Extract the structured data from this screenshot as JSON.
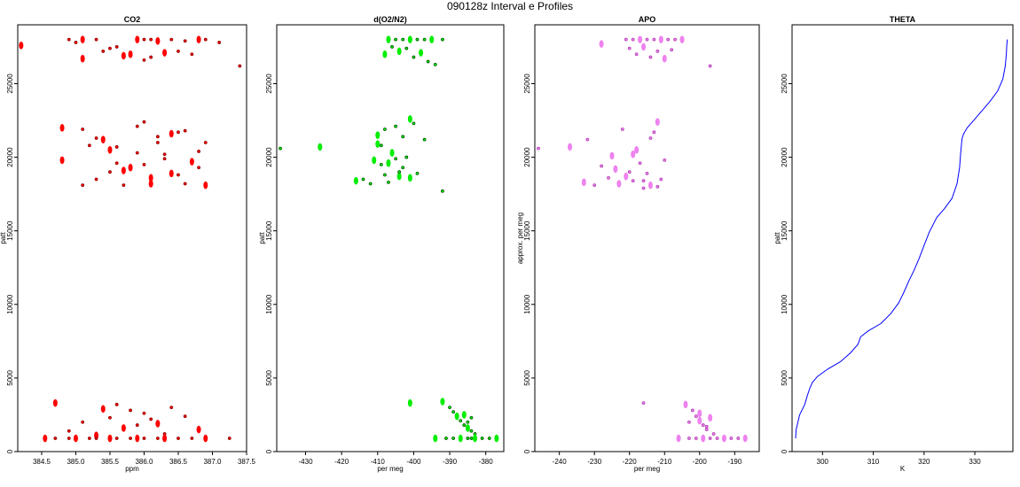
{
  "figure_title": "090128z   Interval e Profiles",
  "chart_data": [
    {
      "type": "scatter",
      "title": "CO2",
      "xlabel": "ppm",
      "ylabel": "patt",
      "xlim": [
        384.15,
        387.5
      ],
      "ylim": [
        0,
        29000
      ],
      "xticks": [
        384.5,
        385.0,
        385.5,
        386.0,
        386.5,
        387.0,
        387.5
      ],
      "xtick_labels": [
        "384.5",
        "385.0",
        "385.5",
        "386.0",
        "386.5",
        "387.0",
        "387.5"
      ],
      "yticks": [
        0,
        5000,
        10000,
        15000,
        20000,
        25000
      ],
      "ytick_labels": [
        "0",
        "5000",
        "10000",
        "15000",
        "20000",
        "25000"
      ],
      "colors": {
        "fill": "#ff0000",
        "edge": "#8b0000"
      },
      "series": [
        {
          "x": [
            384.2,
            384.9,
            385.0,
            385.1,
            385.3,
            385.6,
            385.9,
            386.0,
            386.1,
            386.2,
            386.4,
            386.6,
            386.8,
            386.9,
            387.1
          ],
          "y": [
            27600,
            28000,
            27800,
            28000,
            28000,
            27500,
            28000,
            28000,
            28000,
            27900,
            28000,
            27900,
            28000,
            28000,
            27800
          ]
        },
        {
          "x": [
            385.1,
            385.4,
            385.5,
            385.8,
            386.0,
            386.1,
            386.3,
            386.7,
            387.4,
            385.7,
            386.5
          ],
          "y": [
            26700,
            27200,
            27400,
            27000,
            26600,
            26800,
            27100,
            27000,
            26200,
            26900,
            27200
          ]
        },
        {
          "x": [
            384.8,
            385.1,
            385.3,
            385.5,
            385.6,
            385.7,
            385.8,
            385.9,
            386.0,
            386.1,
            386.2,
            386.3,
            386.4,
            386.5,
            386.6,
            386.7,
            386.8,
            386.9
          ],
          "y": [
            22000,
            21900,
            21300,
            20500,
            19600,
            18100,
            19300,
            20300,
            22400,
            18200,
            21000,
            19900,
            21600,
            18800,
            21800,
            19700,
            20400,
            21000
          ]
        },
        {
          "x": [
            384.8,
            385.1,
            385.3,
            385.4,
            385.5,
            385.6,
            385.7,
            385.9,
            386.0,
            386.1,
            386.2,
            386.3,
            386.4,
            386.5,
            386.6,
            386.9,
            385.2,
            386.8
          ],
          "y": [
            19800,
            18100,
            18500,
            21200,
            19000,
            20700,
            19100,
            22100,
            19500,
            18600,
            21400,
            20200,
            18900,
            21700,
            18200,
            18100,
            20800,
            19300
          ]
        },
        {
          "x": [
            384.7,
            384.9,
            385.1,
            385.3,
            385.5,
            385.6,
            385.7,
            385.8,
            386.0,
            386.2,
            386.4,
            386.6,
            386.8,
            385.9,
            386.1,
            385.4,
            386.3
          ],
          "y": [
            3300,
            1400,
            2000,
            1100,
            2300,
            3200,
            1600,
            2800,
            2600,
            1900,
            3000,
            2400,
            1500,
            1800,
            2200,
            2900,
            1200
          ]
        },
        {
          "x": [
            384.55,
            384.7,
            384.9,
            385.0,
            385.2,
            385.3,
            385.5,
            385.6,
            385.8,
            385.9,
            386.0,
            386.2,
            386.3,
            386.5,
            386.7,
            386.9,
            387.25
          ],
          "y": [
            900,
            900,
            900,
            900,
            900,
            900,
            900,
            900,
            900,
            900,
            900,
            900,
            900,
            900,
            900,
            900,
            900
          ]
        }
      ]
    },
    {
      "type": "scatter",
      "title": "d(O2/N2)",
      "xlabel": "per meg",
      "ylabel": "patt",
      "xlim": [
        -438,
        -375
      ],
      "ylim": [
        0,
        29000
      ],
      "xticks": [
        -430,
        -420,
        -410,
        -400,
        -390,
        -380
      ],
      "xtick_labels": [
        "-430",
        "-420",
        "-410",
        "-400",
        "-390",
        "-380"
      ],
      "yticks": [
        0,
        5000,
        10000,
        15000,
        20000,
        25000
      ],
      "ytick_labels": [
        "0",
        "5000",
        "10000",
        "15000",
        "20000",
        "25000"
      ],
      "colors": {
        "fill": "#00ee00",
        "edge": "#005500"
      },
      "series": [
        {
          "x": [
            -407,
            -405,
            -403,
            -401,
            -399,
            -397,
            -395,
            -392,
            -406,
            -404,
            -402,
            -400,
            -398,
            -396,
            -394,
            -408
          ],
          "y": [
            28000,
            28000,
            28000,
            28000,
            28000,
            28000,
            28000,
            28000,
            27500,
            27200,
            27400,
            26800,
            27100,
            26500,
            26300,
            27000
          ]
        },
        {
          "x": [
            -410,
            -409,
            -408,
            -407,
            -406,
            -405,
            -404,
            -403,
            -402,
            -401,
            -399,
            -397,
            -426,
            -437,
            -392
          ],
          "y": [
            21500,
            20800,
            21900,
            19600,
            20400,
            22100,
            18700,
            19300,
            20000,
            22600,
            18900,
            21200,
            20700,
            20600,
            17700
          ]
        },
        {
          "x": [
            -416,
            -414,
            -412,
            -411,
            -409,
            -408,
            -406,
            -404,
            -403,
            -401,
            -400,
            -405,
            -410,
            -407
          ],
          "y": [
            18400,
            18500,
            18200,
            19800,
            19500,
            18800,
            20300,
            19000,
            21400,
            18600,
            22300,
            19900,
            20900,
            18300
          ]
        },
        {
          "x": [
            -392,
            -390,
            -389,
            -388,
            -387,
            -386,
            -385,
            -384,
            -383,
            -386,
            -385,
            -384,
            -401
          ],
          "y": [
            3400,
            3000,
            2700,
            2400,
            2100,
            1800,
            1600,
            1400,
            1200,
            2500,
            2000,
            2300,
            3300
          ]
        },
        {
          "x": [
            -394,
            -391,
            -389,
            -387,
            -385,
            -384,
            -383,
            -381,
            -379,
            -377
          ],
          "y": [
            900,
            900,
            900,
            900,
            900,
            900,
            900,
            900,
            900,
            900
          ]
        }
      ]
    },
    {
      "type": "scatter",
      "title": "APO",
      "xlabel": "per meg",
      "ylabel": "approx. per meg",
      "xlim": [
        -247,
        -183
      ],
      "ylim": [
        0,
        29000
      ],
      "xticks": [
        -240,
        -230,
        -220,
        -210,
        -200,
        -190
      ],
      "xtick_labels": [
        "-240",
        "-230",
        "-220",
        "-210",
        "-200",
        "-190"
      ],
      "yticks": [
        0,
        5000,
        10000,
        15000,
        20000,
        25000
      ],
      "ytick_labels": [
        "0",
        "5000",
        "10000",
        "15000",
        "20000",
        "25000"
      ],
      "colors": {
        "fill": "#ee82ee",
        "edge": "#b040b0"
      },
      "series": [
        {
          "x": [
            -228,
            -221,
            -219,
            -217,
            -215,
            -213,
            -211,
            -209,
            -207,
            -205,
            -220,
            -218,
            -216,
            -214,
            -212,
            -210,
            -208,
            -197
          ],
          "y": [
            27700,
            28000,
            28000,
            28000,
            28000,
            28000,
            28000,
            28000,
            28000,
            28000,
            27400,
            27000,
            27500,
            26800,
            27200,
            26700,
            27300,
            26200
          ]
        },
        {
          "x": [
            -237,
            -232,
            -228,
            -225,
            -222,
            -220,
            -218,
            -216,
            -214,
            -212,
            -210,
            -215,
            -219,
            -217,
            -213,
            -221,
            -246
          ],
          "y": [
            20700,
            21200,
            19400,
            20100,
            21900,
            19000,
            20500,
            18400,
            21300,
            22400,
            19800,
            18900,
            20200,
            19600,
            21700,
            18700,
            20600
          ]
        },
        {
          "x": [
            -233,
            -230,
            -226,
            -223,
            -219,
            -216,
            -214,
            -212,
            -211,
            -224
          ],
          "y": [
            18300,
            18100,
            18600,
            18200,
            18400,
            17900,
            18100,
            18000,
            18500,
            19200
          ]
        },
        {
          "x": [
            -204,
            -202,
            -201,
            -200,
            -199,
            -198,
            -197,
            -196,
            -203,
            -200,
            -198,
            -216
          ],
          "y": [
            3200,
            2800,
            2400,
            2100,
            1800,
            1500,
            2300,
            1200,
            2000,
            2600,
            1700,
            3300
          ]
        },
        {
          "x": [
            -206,
            -203,
            -201,
            -199,
            -197,
            -195,
            -193,
            -191,
            -189,
            -187
          ],
          "y": [
            900,
            900,
            900,
            900,
            900,
            900,
            900,
            900,
            900,
            900
          ]
        }
      ]
    },
    {
      "type": "line",
      "title": "THETA",
      "xlabel": "K",
      "ylabel": "patt",
      "xlim": [
        294,
        337.5
      ],
      "ylim": [
        0,
        29000
      ],
      "xticks": [
        300,
        310,
        320,
        330
      ],
      "xtick_labels": [
        "300",
        "310",
        "320",
        "330"
      ],
      "yticks": [
        0,
        5000,
        10000,
        15000,
        20000,
        25000
      ],
      "ytick_labels": [
        "0",
        "5000",
        "10000",
        "15000",
        "20000",
        "25000"
      ],
      "colors": {
        "line": "#0000ff"
      },
      "x": [
        294.7,
        294.8,
        295.5,
        296.5,
        297.0,
        297.5,
        298.0,
        299.0,
        301.0,
        303.5,
        305.5,
        307.0,
        307.5,
        309.0,
        311.5,
        313.5,
        315.0,
        316.0,
        317.0,
        318.0,
        319.0,
        320.0,
        321.0,
        322.5,
        324.0,
        325.5,
        326.5,
        327.0,
        327.2,
        327.4,
        327.5,
        327.8,
        328.5,
        330.0,
        331.5,
        333.0,
        334.5,
        335.5,
        336.0,
        336.2,
        336.3,
        336.4
      ],
      "y": [
        900,
        1500,
        2500,
        3200,
        3800,
        4300,
        4700,
        5100,
        5600,
        6100,
        6700,
        7300,
        7800,
        8200,
        8700,
        9400,
        10100,
        10800,
        11600,
        12300,
        13100,
        14000,
        14900,
        15900,
        16500,
        17200,
        18200,
        19300,
        20200,
        21000,
        21300,
        21600,
        22000,
        22600,
        23200,
        23800,
        24500,
        25300,
        26200,
        27000,
        27600,
        28000
      ]
    }
  ]
}
